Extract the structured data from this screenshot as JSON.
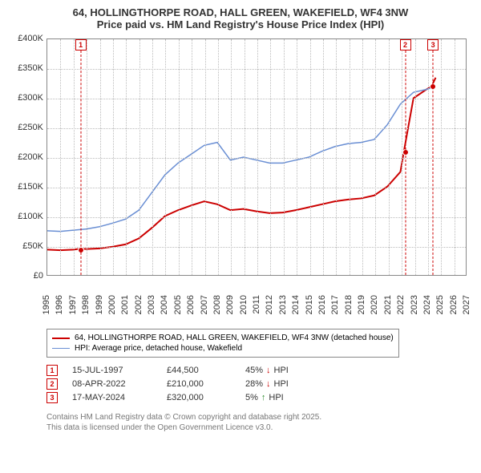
{
  "title": {
    "line1": "64, HOLLINGTHORPE ROAD, HALL GREEN, WAKEFIELD, WF4 3NW",
    "line2": "Price paid vs. HM Land Registry's House Price Index (HPI)"
  },
  "chart": {
    "type": "line",
    "background_color": "#ffffff",
    "grid_color": "#bbbbbb",
    "border_color": "#888888",
    "xlim": [
      1995,
      2027
    ],
    "ylim": [
      0,
      400000
    ],
    "yticks": [
      0,
      50000,
      100000,
      150000,
      200000,
      250000,
      300000,
      350000,
      400000
    ],
    "ytick_labels": [
      "£0",
      "£50K",
      "£100K",
      "£150K",
      "£200K",
      "£250K",
      "£300K",
      "£350K",
      "£400K"
    ],
    "xticks": [
      1995,
      1996,
      1997,
      1998,
      1999,
      2000,
      2001,
      2002,
      2003,
      2004,
      2005,
      2006,
      2007,
      2008,
      2009,
      2010,
      2011,
      2012,
      2013,
      2014,
      2015,
      2016,
      2017,
      2018,
      2019,
      2020,
      2021,
      2022,
      2023,
      2024,
      2025,
      2026,
      2027
    ],
    "series": [
      {
        "id": "price_paid",
        "label": "64, HOLLINGTHORPE ROAD, HALL GREEN, WAKEFIELD, WF4 3NW (detached house)",
        "color": "#cc0000",
        "line_width": 2,
        "data": [
          [
            1995,
            43000
          ],
          [
            1996,
            42000
          ],
          [
            1997,
            43000
          ],
          [
            1997.54,
            44500
          ],
          [
            1998,
            44000
          ],
          [
            1999,
            45000
          ],
          [
            2000,
            48000
          ],
          [
            2001,
            52000
          ],
          [
            2002,
            62000
          ],
          [
            2003,
            80000
          ],
          [
            2004,
            100000
          ],
          [
            2005,
            110000
          ],
          [
            2006,
            118000
          ],
          [
            2007,
            125000
          ],
          [
            2008,
            120000
          ],
          [
            2009,
            110000
          ],
          [
            2010,
            112000
          ],
          [
            2011,
            108000
          ],
          [
            2012,
            105000
          ],
          [
            2013,
            106000
          ],
          [
            2014,
            110000
          ],
          [
            2015,
            115000
          ],
          [
            2016,
            120000
          ],
          [
            2017,
            125000
          ],
          [
            2018,
            128000
          ],
          [
            2019,
            130000
          ],
          [
            2020,
            135000
          ],
          [
            2021,
            150000
          ],
          [
            2022,
            175000
          ],
          [
            2022.27,
            210000
          ],
          [
            2023,
            300000
          ],
          [
            2024,
            315000
          ],
          [
            2024.38,
            320000
          ],
          [
            2024.7,
            335000
          ]
        ],
        "markers": [
          {
            "x": 1997.54,
            "y": 44500
          },
          {
            "x": 2022.27,
            "y": 210000
          },
          {
            "x": 2024.38,
            "y": 320000
          }
        ]
      },
      {
        "id": "hpi",
        "label": "HPI: Average price, detached house, Wakefield",
        "color": "#6a8fd4",
        "line_width": 1.5,
        "data": [
          [
            1995,
            75000
          ],
          [
            1996,
            74000
          ],
          [
            1997,
            76000
          ],
          [
            1998,
            78000
          ],
          [
            1999,
            82000
          ],
          [
            2000,
            88000
          ],
          [
            2001,
            95000
          ],
          [
            2002,
            110000
          ],
          [
            2003,
            140000
          ],
          [
            2004,
            170000
          ],
          [
            2005,
            190000
          ],
          [
            2006,
            205000
          ],
          [
            2007,
            220000
          ],
          [
            2008,
            225000
          ],
          [
            2009,
            195000
          ],
          [
            2010,
            200000
          ],
          [
            2011,
            195000
          ],
          [
            2012,
            190000
          ],
          [
            2013,
            190000
          ],
          [
            2014,
            195000
          ],
          [
            2015,
            200000
          ],
          [
            2016,
            210000
          ],
          [
            2017,
            218000
          ],
          [
            2018,
            223000
          ],
          [
            2019,
            225000
          ],
          [
            2020,
            230000
          ],
          [
            2021,
            255000
          ],
          [
            2022,
            290000
          ],
          [
            2023,
            310000
          ],
          [
            2024,
            315000
          ],
          [
            2024.7,
            320000
          ]
        ]
      }
    ],
    "sale_markers": [
      {
        "num": "1",
        "x": 1997.54
      },
      {
        "num": "2",
        "x": 2022.27
      },
      {
        "num": "3",
        "x": 2024.38
      }
    ]
  },
  "legend": {
    "items": [
      {
        "color": "#cc0000",
        "width": 2,
        "label": "64, HOLLINGTHORPE ROAD, HALL GREEN, WAKEFIELD, WF4 3NW (detached house)"
      },
      {
        "color": "#6a8fd4",
        "width": 1.5,
        "label": "HPI: Average price, detached house, Wakefield"
      }
    ]
  },
  "sales": [
    {
      "num": "1",
      "date": "15-JUL-1997",
      "price": "£44,500",
      "delta_pct": "45%",
      "delta_dir": "↓",
      "delta_suffix": "HPI",
      "marker_color": "#cc0000"
    },
    {
      "num": "2",
      "date": "08-APR-2022",
      "price": "£210,000",
      "delta_pct": "28%",
      "delta_dir": "↓",
      "delta_suffix": "HPI",
      "marker_color": "#cc0000"
    },
    {
      "num": "3",
      "date": "17-MAY-2024",
      "price": "£320,000",
      "delta_pct": "5%",
      "delta_dir": "↑",
      "delta_suffix": "HPI",
      "marker_color": "#cc0000"
    }
  ],
  "attribution": {
    "line1": "Contains HM Land Registry data © Crown copyright and database right 2025.",
    "line2": "This data is licensed under the Open Government Licence v3.0."
  }
}
